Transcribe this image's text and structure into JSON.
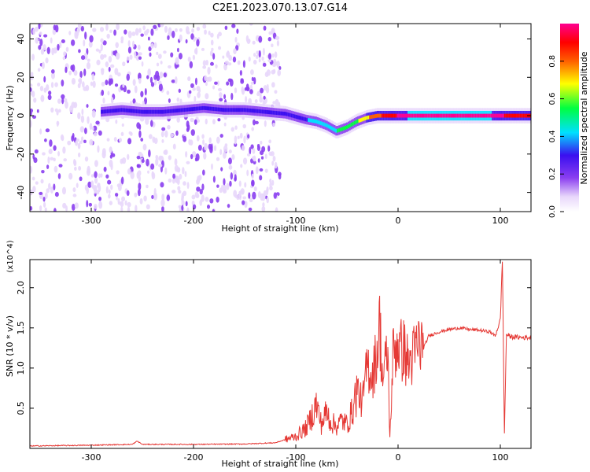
{
  "title": "C2E1.2023.070.13.07.G14",
  "chart_data": [
    {
      "type": "heatmap",
      "xlabel": "Height of straight line (km)",
      "ylabel": "Frequency (Hz)",
      "xlim": [
        -360,
        130
      ],
      "ylim": [
        -50,
        48
      ],
      "xticks": [
        -300,
        -200,
        -100,
        0,
        100
      ],
      "yticks": [
        -40,
        -20,
        0,
        20,
        40
      ],
      "colorbar": {
        "label": "Normalized spectral amplitude",
        "range": [
          0.0,
          1.0
        ],
        "ticks": [
          0.0,
          0.2,
          0.4,
          0.6,
          0.8
        ],
        "colors": [
          "#ffffff",
          "#e8d7fb",
          "#8a3ef0",
          "#3a0ff0",
          "#00e0ff",
          "#00ff40",
          "#ffff00",
          "#ff6000",
          "#ff0000",
          "#ff0090"
        ]
      },
      "ridge": {
        "x": [
          -290,
          -270,
          -250,
          -230,
          -210,
          -190,
          -170,
          -150,
          -130,
          -110,
          -90,
          -80,
          -70,
          -60,
          -50,
          -40,
          -30,
          -20,
          -10,
          0,
          20,
          50,
          80,
          100,
          130
        ],
        "frequency": [
          2,
          3,
          2,
          2,
          3,
          4,
          3,
          3,
          2,
          1,
          -2,
          -3,
          -5,
          -8,
          -6,
          -3,
          -1,
          0,
          0,
          0,
          0,
          0,
          0,
          0,
          0
        ],
        "amplitude": [
          0.28,
          0.32,
          0.3,
          0.3,
          0.33,
          0.38,
          0.36,
          0.36,
          0.34,
          0.35,
          0.38,
          0.42,
          0.48,
          0.5,
          0.55,
          0.6,
          0.7,
          0.8,
          0.88,
          0.95,
          1.0,
          1.0,
          1.0,
          0.95,
          0.9
        ]
      },
      "noise_region_x": [
        -360,
        -115
      ]
    },
    {
      "type": "line",
      "xlabel": "Height of straight line (km)",
      "ylabel": "SNR (10 * v/v)",
      "y_multiplier": "(x10^4)",
      "xlim": [
        -360,
        130
      ],
      "ylim": [
        0,
        23500
      ],
      "xticks": [
        -300,
        -200,
        -100,
        0,
        100
      ],
      "yticks": [
        5000,
        10000,
        15000,
        20000
      ],
      "ytick_labels": [
        "0.5",
        "1.0",
        "1.5",
        "2.0"
      ],
      "series": [
        {
          "color": "#e53935",
          "x": [
            -360,
            -300,
            -260,
            -255,
            -250,
            -200,
            -150,
            -120,
            -100,
            -90,
            -85,
            -80,
            -75,
            -70,
            -65,
            -60,
            -55,
            -50,
            -45,
            -40,
            -35,
            -30,
            -25,
            -20,
            -18,
            -15,
            -10,
            -8,
            -5,
            0,
            2,
            5,
            10,
            15,
            20,
            25,
            30,
            40,
            50,
            60,
            70,
            80,
            90,
            95,
            100,
            102,
            104,
            106,
            110,
            120,
            130
          ],
          "y": [
            300,
            400,
            500,
            900,
            500,
            500,
            550,
            700,
            1500,
            2500,
            3800,
            5500,
            3000,
            4500,
            3200,
            2800,
            3500,
            3000,
            4500,
            7500,
            5500,
            10500,
            9000,
            12500,
            15500,
            8500,
            12000,
            1200,
            11500,
            13500,
            12000,
            12500,
            10500,
            11500,
            13000,
            12500,
            14000,
            14500,
            14800,
            15000,
            14800,
            14700,
            14500,
            14000,
            16000,
            23500,
            2000,
            14200,
            13900,
            13800,
            13800
          ]
        }
      ]
    }
  ]
}
